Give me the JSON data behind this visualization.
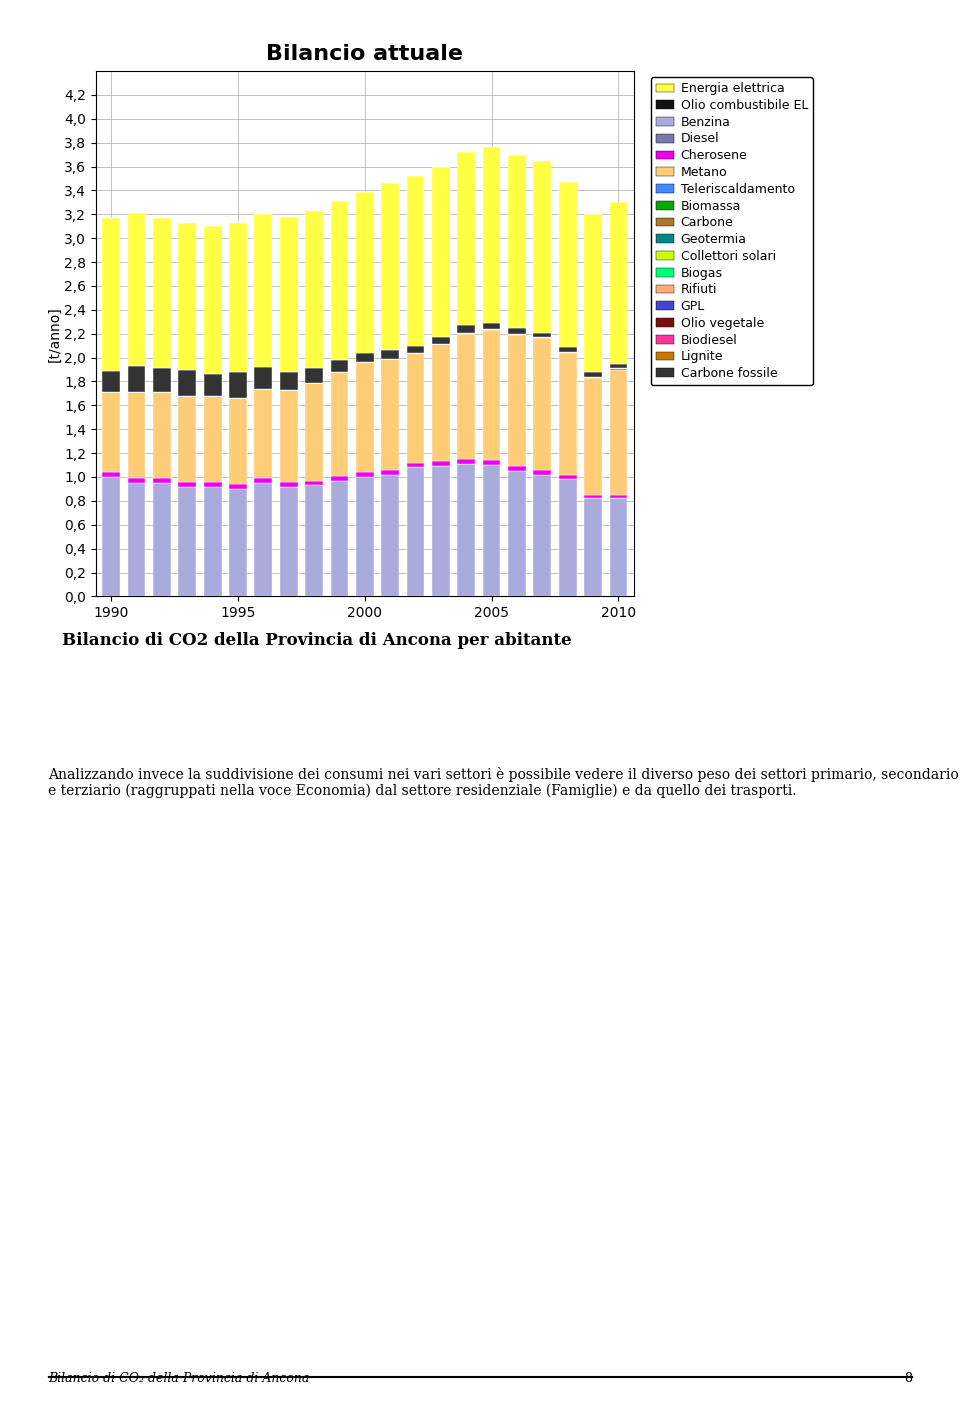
{
  "title": "Bilancio attuale",
  "ylabel": "[t/anno]",
  "subtitle": "Bilancio di CO2 della Provincia di Ancona per abitante",
  "footer": "Bilancio di CO₂ della Provincia di Ancona",
  "page_number": "8",
  "body_text": "Analizzando invece la suddivisione dei consumi nei vari settori è possibile vedere il diverso peso dei settori primario, secondario e terziario (raggruppati nella voce Economia) dal settore residenziale (Famiglie) e da quello dei trasporti.",
  "years": [
    1990,
    1991,
    1992,
    1993,
    1994,
    1995,
    1996,
    1997,
    1998,
    1999,
    2000,
    2001,
    2002,
    2003,
    2004,
    2005,
    2006,
    2007,
    2008,
    2009,
    2010
  ],
  "legend_labels": [
    "Energia elettrica",
    "Olio combustibile EL",
    "Benzina",
    "Diesel",
    "Cherosene",
    "Metano",
    "Teleriscaldamento",
    "Biomassa",
    "Carbone",
    "Geotermia",
    "Collettori solari",
    "Biogas",
    "Rifiuti",
    "GPL",
    "Olio vegetale",
    "Biodiesel",
    "Lignite",
    "Carbone fossile"
  ],
  "legend_colors": [
    "#FFFF00",
    "#1A1A1A",
    "#CCCCFF",
    "#6666AA",
    "#FF00FF",
    "#FFCC66",
    "#3399FF",
    "#009900",
    "#996633",
    "#009999",
    "#CCFF00",
    "#00FF66",
    "#FF9966",
    "#3333CC",
    "#660000",
    "#FF3399",
    "#CC6600",
    "#333333"
  ],
  "data": {
    "Carbone fossile": [
      0.18,
      0.22,
      0.2,
      0.22,
      0.18,
      0.22,
      0.18,
      0.15,
      0.12,
      0.1,
      0.08,
      0.07,
      0.06,
      0.06,
      0.06,
      0.05,
      0.05,
      0.04,
      0.04,
      0.04,
      0.04
    ],
    "Lignite": [
      0.0,
      0.0,
      0.0,
      0.0,
      0.0,
      0.0,
      0.0,
      0.0,
      0.0,
      0.0,
      0.0,
      0.0,
      0.0,
      0.0,
      0.0,
      0.0,
      0.0,
      0.0,
      0.0,
      0.0,
      0.0
    ],
    "Biodiesel": [
      0.0,
      0.0,
      0.0,
      0.0,
      0.0,
      0.0,
      0.0,
      0.0,
      0.0,
      0.0,
      0.0,
      0.0,
      0.0,
      0.0,
      0.0,
      0.0,
      0.0,
      0.0,
      0.0,
      0.0,
      0.0
    ],
    "Olio vegetale": [
      0.0,
      0.0,
      0.0,
      0.0,
      0.0,
      0.0,
      0.0,
      0.0,
      0.0,
      0.0,
      0.0,
      0.0,
      0.0,
      0.0,
      0.0,
      0.0,
      0.0,
      0.0,
      0.0,
      0.0,
      0.0
    ],
    "GPL": [
      0.0,
      0.0,
      0.0,
      0.0,
      0.0,
      0.0,
      0.0,
      0.0,
      0.0,
      0.0,
      0.0,
      0.0,
      0.0,
      0.0,
      0.0,
      0.0,
      0.0,
      0.0,
      0.0,
      0.0,
      0.0
    ],
    "Rifiuti": [
      0.0,
      0.0,
      0.0,
      0.0,
      0.0,
      0.0,
      0.0,
      0.0,
      0.0,
      0.0,
      0.0,
      0.0,
      0.0,
      0.0,
      0.0,
      0.0,
      0.0,
      0.0,
      0.0,
      0.0,
      0.0
    ],
    "Biogas": [
      0.0,
      0.0,
      0.0,
      0.0,
      0.0,
      0.0,
      0.0,
      0.0,
      0.0,
      0.0,
      0.0,
      0.0,
      0.0,
      0.0,
      0.0,
      0.0,
      0.0,
      0.0,
      0.0,
      0.0,
      0.0
    ],
    "Collettori solari": [
      0.0,
      0.0,
      0.0,
      0.0,
      0.0,
      0.0,
      0.0,
      0.0,
      0.0,
      0.0,
      0.0,
      0.0,
      0.0,
      0.0,
      0.0,
      0.0,
      0.0,
      0.0,
      0.0,
      0.0,
      0.0
    ],
    "Geotermia": [
      0.0,
      0.0,
      0.0,
      0.0,
      0.0,
      0.0,
      0.0,
      0.0,
      0.0,
      0.0,
      0.0,
      0.0,
      0.0,
      0.0,
      0.0,
      0.0,
      0.0,
      0.0,
      0.0,
      0.0,
      0.0
    ],
    "Carbone": [
      0.0,
      0.0,
      0.0,
      0.0,
      0.0,
      0.0,
      0.0,
      0.0,
      0.0,
      0.0,
      0.0,
      0.0,
      0.0,
      0.0,
      0.0,
      0.0,
      0.0,
      0.0,
      0.0,
      0.0,
      0.0
    ],
    "Biomassa": [
      0.0,
      0.0,
      0.0,
      0.0,
      0.0,
      0.0,
      0.0,
      0.0,
      0.0,
      0.0,
      0.0,
      0.0,
      0.0,
      0.0,
      0.0,
      0.0,
      0.0,
      0.0,
      0.0,
      0.0,
      0.0
    ],
    "Teleriscaldamento": [
      0.0,
      0.0,
      0.0,
      0.0,
      0.0,
      0.0,
      0.0,
      0.0,
      0.0,
      0.0,
      0.0,
      0.0,
      0.0,
      0.0,
      0.01,
      0.01,
      0.01,
      0.01,
      0.01,
      0.01,
      0.01
    ],
    "Cherosene": [
      0.04,
      0.04,
      0.04,
      0.04,
      0.04,
      0.04,
      0.04,
      0.04,
      0.04,
      0.04,
      0.04,
      0.04,
      0.04,
      0.04,
      0.04,
      0.04,
      0.04,
      0.04,
      0.04,
      0.03,
      0.03
    ],
    "Diesel": [
      0.0,
      0.0,
      0.0,
      0.0,
      0.0,
      0.0,
      0.0,
      0.0,
      0.0,
      0.0,
      0.0,
      0.0,
      0.0,
      0.0,
      0.0,
      0.0,
      0.0,
      0.0,
      0.0,
      0.0,
      0.0
    ],
    "Benzina": [
      1.0,
      0.95,
      0.95,
      0.92,
      0.92,
      0.9,
      0.95,
      0.92,
      0.93,
      0.97,
      1.0,
      1.02,
      1.08,
      1.09,
      1.11,
      1.1,
      1.05,
      1.02,
      0.98,
      0.82,
      0.82
    ],
    "Olio combustibile EL": [
      0.0,
      0.0,
      0.0,
      0.0,
      0.0,
      0.0,
      0.0,
      0.0,
      0.0,
      0.0,
      0.0,
      0.0,
      0.0,
      0.0,
      0.0,
      0.0,
      0.0,
      0.0,
      0.0,
      0.0,
      0.0
    ],
    "Metano": [
      0.67,
      0.72,
      0.72,
      0.72,
      0.72,
      0.72,
      0.75,
      0.77,
      0.82,
      0.87,
      0.92,
      0.93,
      0.92,
      0.98,
      1.05,
      1.09,
      1.1,
      1.1,
      1.02,
      0.98,
      1.05
    ],
    "Energia elettrica": [
      1.28,
      1.28,
      1.26,
      1.23,
      1.24,
      1.25,
      1.28,
      1.3,
      1.32,
      1.33,
      1.35,
      1.4,
      1.42,
      1.43,
      1.45,
      1.47,
      1.45,
      1.44,
      1.38,
      1.32,
      1.35
    ]
  },
  "ylim": [
    0,
    4.4
  ],
  "ytick_step": 0.2,
  "bar_width": 0.7,
  "background_color": "#ffffff",
  "plot_bg_color": "#ffffff",
  "grid_color": "#aaaaaa",
  "title_fontsize": 16,
  "axis_fontsize": 10,
  "legend_fontsize": 9
}
